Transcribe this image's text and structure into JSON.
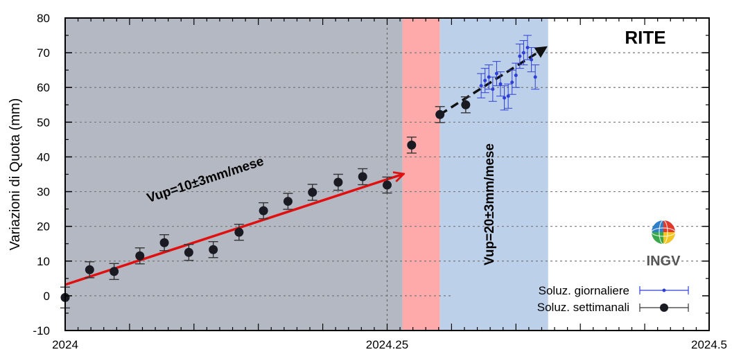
{
  "chart_data": {
    "type": "scatter",
    "station": "RITE",
    "ylabel": "Variazioni di Quota (mm)",
    "xlim": [
      2024,
      2024.5
    ],
    "ylim": [
      -10,
      80
    ],
    "xticks": [
      {
        "value": 2024,
        "label": "2024"
      },
      {
        "value": 2024.25,
        "label": "2024.25"
      },
      {
        "value": 2024.5,
        "label": "2024.5"
      }
    ],
    "yticks": [
      -10,
      0,
      10,
      20,
      30,
      40,
      50,
      60,
      70,
      80
    ],
    "ytick_labels": [
      "-10",
      "0",
      "10",
      "20",
      "30",
      "40",
      "50",
      "60",
      "70",
      "80"
    ],
    "periods": [
      {
        "start": 2024,
        "end": 2024.262,
        "color": "#b3b8c3"
      },
      {
        "start": 2024.262,
        "end": 2024.291,
        "color": "#ffaaaa"
      },
      {
        "start": 2024.291,
        "end": 2024.375,
        "color": "#bdd0ea"
      }
    ],
    "series": [
      {
        "name": "Soluz. settimanali",
        "color": "#1a1a22",
        "x": [
          2024.0,
          2024.019,
          2024.038,
          2024.058,
          2024.077,
          2024.096,
          2024.115,
          2024.135,
          2024.154,
          2024.173,
          2024.192,
          2024.212,
          2024.231,
          2024.25,
          2024.269,
          2024.291,
          2024.311
        ],
        "y": [
          -0.5,
          7.5,
          7.0,
          11.5,
          15.3,
          12.5,
          13.3,
          18.3,
          24.5,
          27.2,
          29.8,
          32.7,
          34.3,
          31.9,
          43.4,
          52.2,
          55.0
        ],
        "err": [
          3.0,
          2.3,
          2.3,
          2.3,
          2.3,
          2.3,
          2.3,
          2.3,
          2.3,
          2.3,
          2.3,
          2.3,
          2.3,
          2.3,
          2.3,
          2.3,
          2.3
        ]
      },
      {
        "name": "Soluz. giornaliere",
        "color": "#2f3fd6",
        "x": [
          2024.323,
          2024.326,
          2024.329,
          2024.332,
          2024.335,
          2024.338,
          2024.341,
          2024.344,
          2024.347,
          2024.35,
          2024.353,
          2024.356,
          2024.359,
          2024.362,
          2024.365
        ],
        "y": [
          60.5,
          62.0,
          63.0,
          59.5,
          64.0,
          61.0,
          57.0,
          57.5,
          61.5,
          63.5,
          69.0,
          70.0,
          71.5,
          68.0,
          63.0
        ],
        "err": [
          3.5,
          3.5,
          3.5,
          3.5,
          3.5,
          3.5,
          3.5,
          3.5,
          3.5,
          3.5,
          3.5,
          3.5,
          3.5,
          3.5,
          3.5
        ]
      }
    ],
    "trends": [
      {
        "label": "Vup=10±3mm/mese",
        "x0": 2024.0,
        "y0": 3.2,
        "x1": 2024.262,
        "y1": 35.0,
        "color": "#e01010",
        "style": "solid"
      },
      {
        "label": "Vup=20±3mm/mese",
        "x0": 2024.291,
        "y0": 52.2,
        "x1": 2024.373,
        "y1": 71.5,
        "color": "#111111",
        "style": "dashed"
      }
    ],
    "legend": {
      "position": "bottom-right",
      "entries": [
        "Soluz. giornaliere",
        "Soluz. settimanali"
      ]
    },
    "grid": true
  },
  "logo": {
    "text": "INGV"
  }
}
